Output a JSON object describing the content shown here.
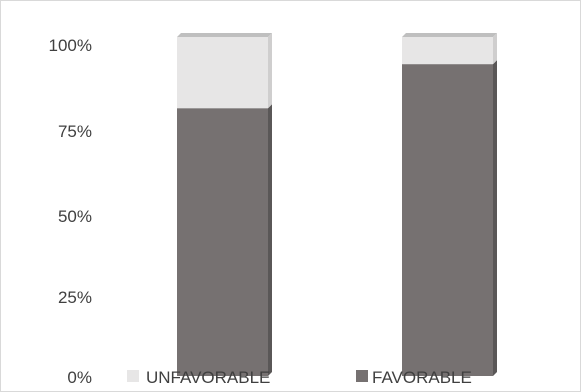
{
  "chart_data": {
    "type": "bar",
    "stacked": true,
    "percent_stacked": true,
    "orientation": "vertical",
    "style": "3d-column",
    "grid": false,
    "legend_position": "bottom",
    "categories": [
      "",
      ""
    ],
    "series": [
      {
        "name": "FAVORABLE",
        "values": [
          79,
          92
        ],
        "color": "#767171"
      },
      {
        "name": "UNFAVORABLE",
        "values": [
          21,
          8
        ],
        "color": "#e7e6e6"
      }
    ],
    "ylim": [
      0,
      100
    ],
    "yticks": [
      "0%",
      "25%",
      "50%",
      "75%",
      "100%"
    ],
    "legend": [
      "UNFAVORABLE",
      "FAVORABLE"
    ]
  }
}
